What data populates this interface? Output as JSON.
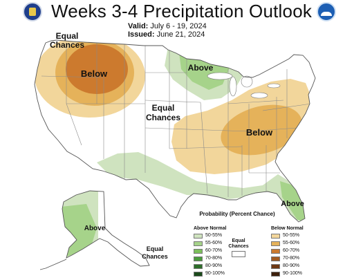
{
  "header": {
    "title": "Weeks 3-4 Precipitation Outlook",
    "valid_label": "Valid:",
    "valid_dates": "July 6 - 19, 2024",
    "issued_label": "Issued:",
    "issued_date": "June 21, 2024"
  },
  "logos": {
    "left": "Department of Commerce seal",
    "right": "NOAA"
  },
  "map_labels": {
    "equal_chances_nw": [
      "Equal",
      "Chances"
    ],
    "below_west": "Below",
    "above_north": "Above",
    "equal_chances_center": [
      "Equal",
      "Chances"
    ],
    "below_east": "Below",
    "above_alaska": "Above",
    "equal_chances_alaska": [
      "Equal",
      "Chances"
    ],
    "above_florida": "Above"
  },
  "legend": {
    "title": "Probability (Percent Chance)",
    "above_header": "Above Normal",
    "below_header": "Below Normal",
    "equal_label": "Equal Chances",
    "above_items": [
      {
        "label": "50-55%",
        "color": "#cfe3bf"
      },
      {
        "label": "55-60%",
        "color": "#a6d38a"
      },
      {
        "label": "60-70%",
        "color": "#7cbf5b"
      },
      {
        "label": "70-80%",
        "color": "#4a9b3d"
      },
      {
        "label": "80-90%",
        "color": "#2e6e2a"
      },
      {
        "label": "90-100%",
        "color": "#1b4a1a"
      }
    ],
    "below_items": [
      {
        "label": "50-55%",
        "color": "#f2d69b"
      },
      {
        "label": "55-60%",
        "color": "#e5b25a"
      },
      {
        "label": "60-70%",
        "color": "#cc7a2e"
      },
      {
        "label": "70-80%",
        "color": "#a35a1f"
      },
      {
        "label": "80-90%",
        "color": "#6e3813"
      },
      {
        "label": "90-100%",
        "color": "#3d1f0b"
      }
    ]
  },
  "colors": {
    "below_50": "#f2d69b",
    "below_55": "#e5b25a",
    "below_60": "#cc7a2e",
    "above_50": "#cfe3bf",
    "above_55": "#a6d38a",
    "above_60": "#7cbf5b",
    "state_line": "#8a8a8a",
    "outline": "#555555"
  }
}
